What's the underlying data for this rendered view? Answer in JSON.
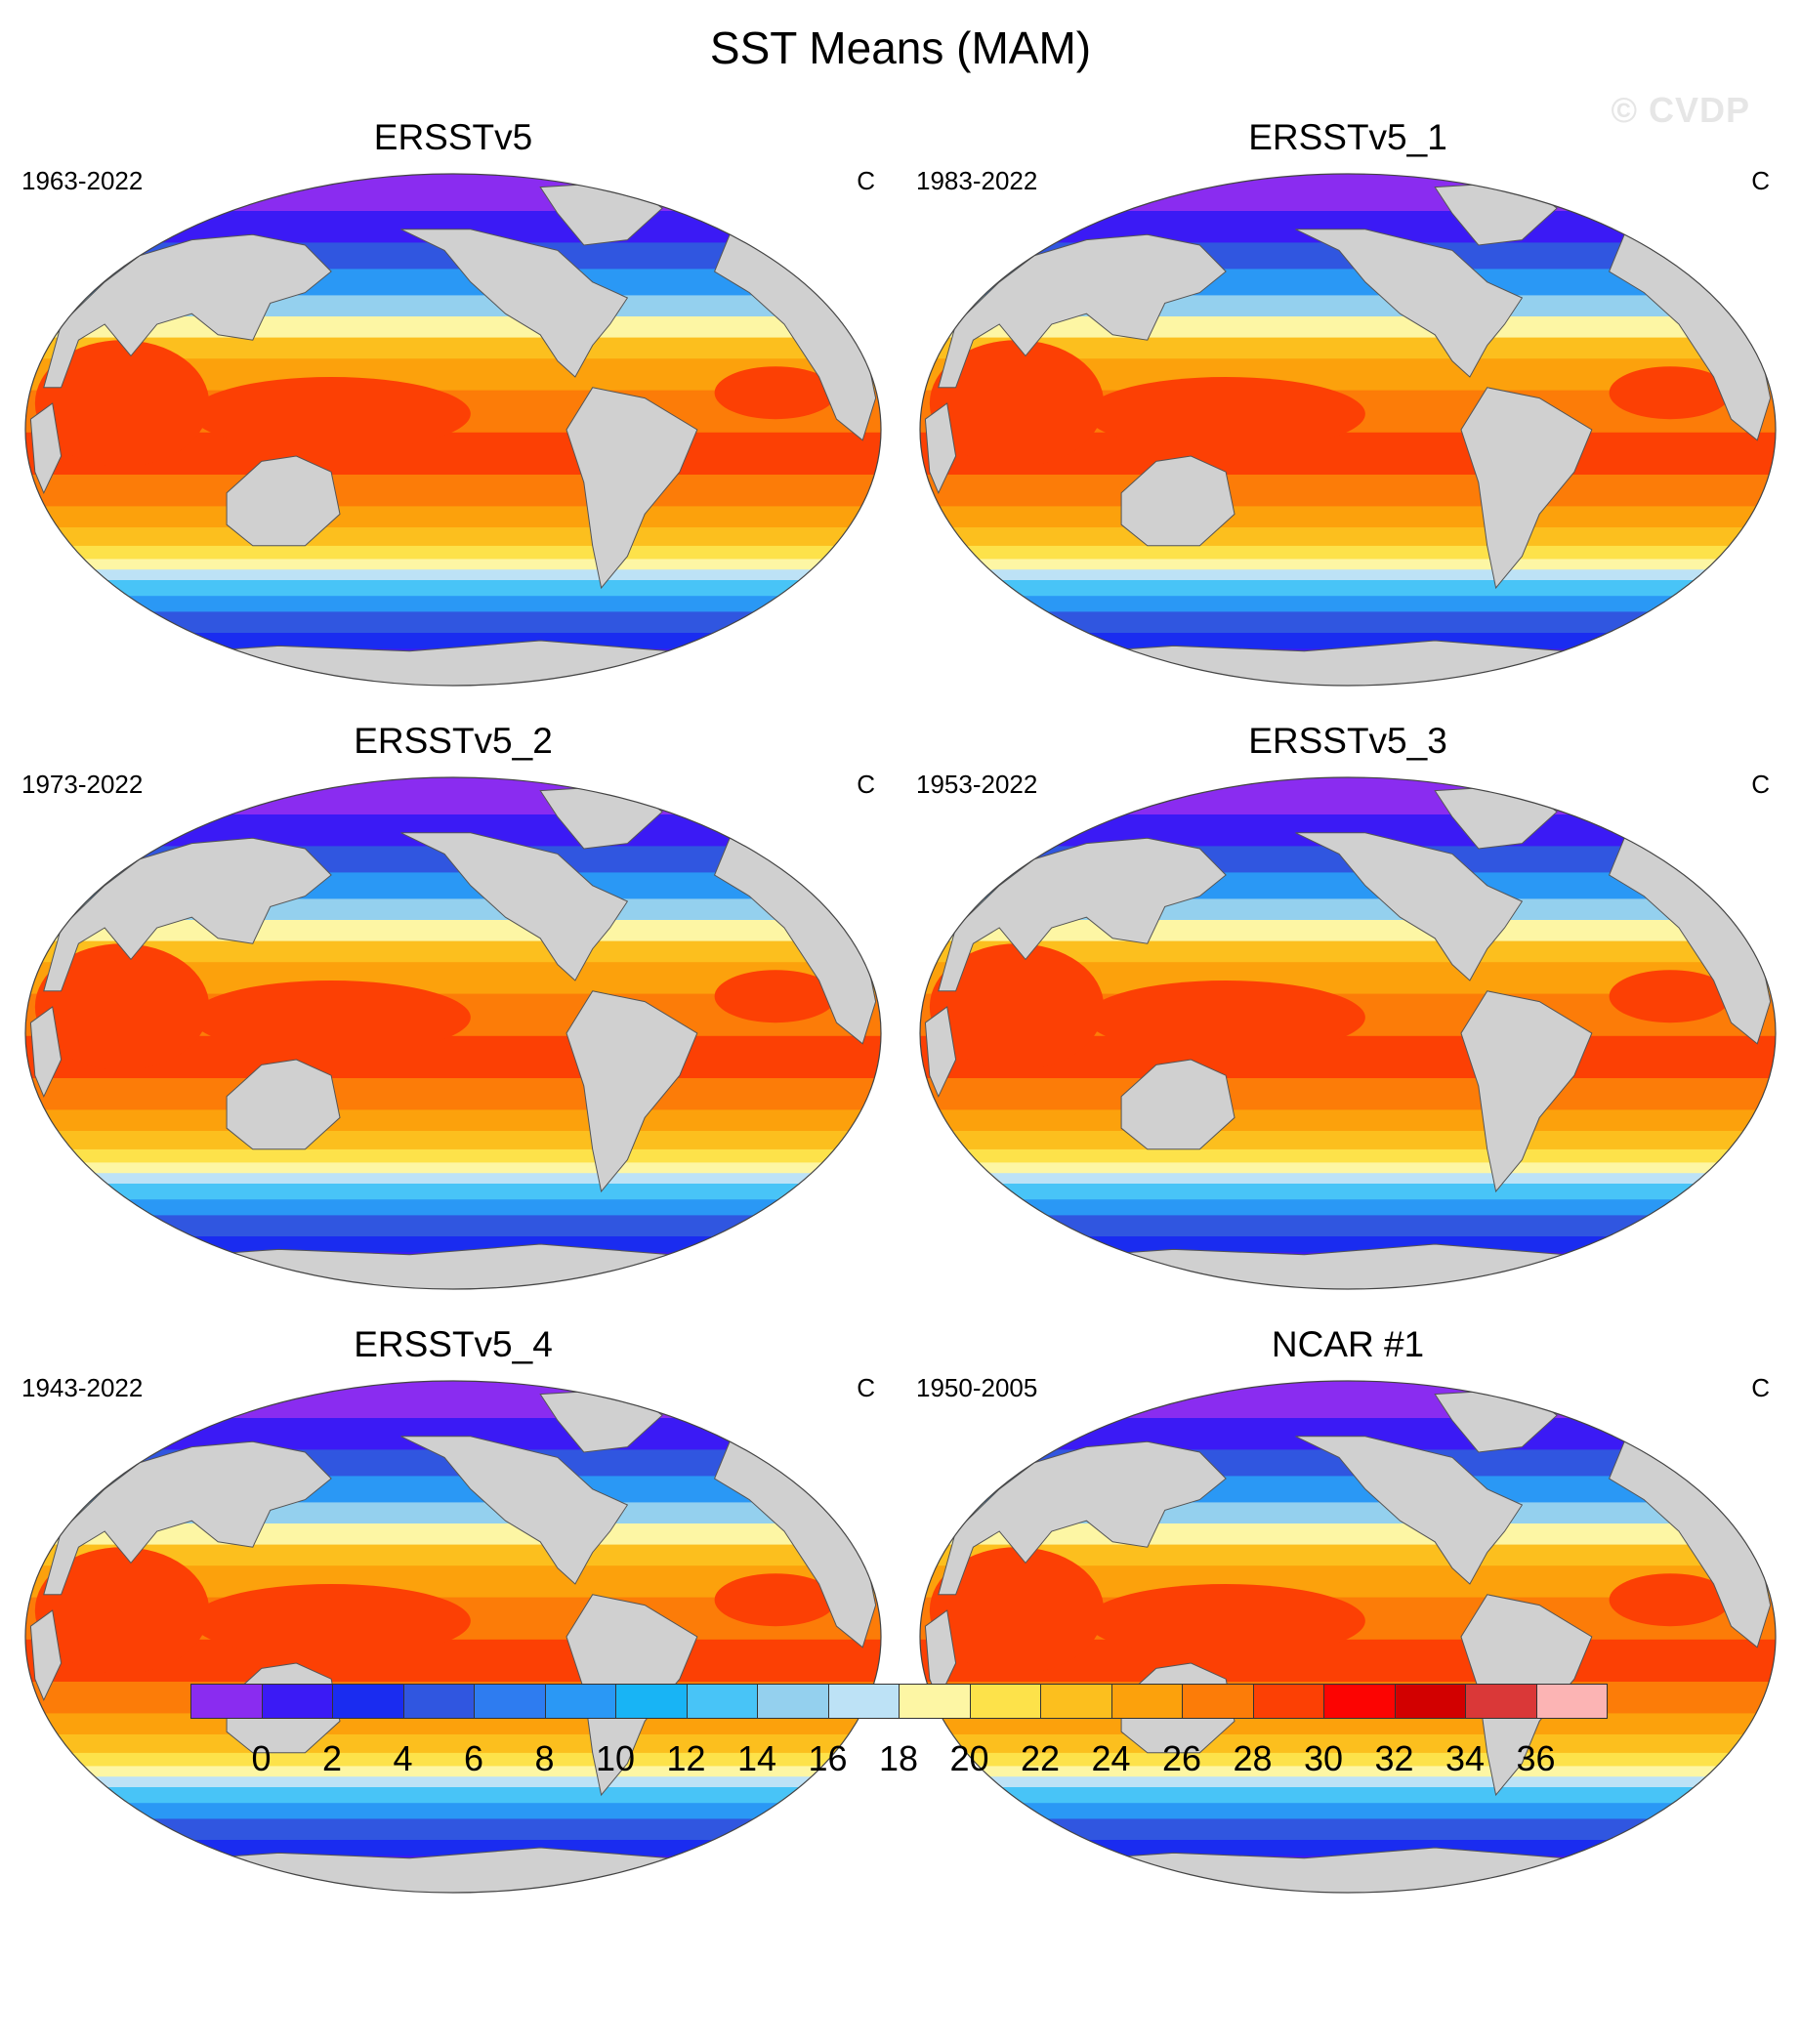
{
  "title": "SST Means (MAM)",
  "watermark": "© CVDP",
  "panels": [
    {
      "name": "ERSSTv5",
      "years": "1963-2022",
      "unit": "C"
    },
    {
      "name": "ERSSTv5_1",
      "years": "1983-2022",
      "unit": "C"
    },
    {
      "name": "ERSSTv5_2",
      "years": "1973-2022",
      "unit": "C"
    },
    {
      "name": "ERSSTv5_3",
      "years": "1953-2022",
      "unit": "C"
    },
    {
      "name": "ERSSTv5_4",
      "years": "1943-2022",
      "unit": "C"
    },
    {
      "name": "NCAR #1",
      "years": "1950-2005",
      "unit": "C"
    }
  ],
  "colorbar": {
    "labels": [
      "0",
      "2",
      "4",
      "6",
      "8",
      "10",
      "12",
      "14",
      "16",
      "18",
      "20",
      "22",
      "24",
      "26",
      "28",
      "30",
      "32",
      "34",
      "36"
    ],
    "colors": [
      "#8a2cf0",
      "#3b1af5",
      "#1a2cf0",
      "#3056e0",
      "#2e7cf0",
      "#2a98f5",
      "#18b4f5",
      "#48c4f7",
      "#94d0ee",
      "#bde2f6",
      "#fdf6a4",
      "#fde24a",
      "#fcbf1e",
      "#fca10c",
      "#fc7c08",
      "#fc4004",
      "#fc0402",
      "#d20000",
      "#da3838",
      "#fcb4b4"
    ],
    "land_color": "#d0d0d0"
  }
}
